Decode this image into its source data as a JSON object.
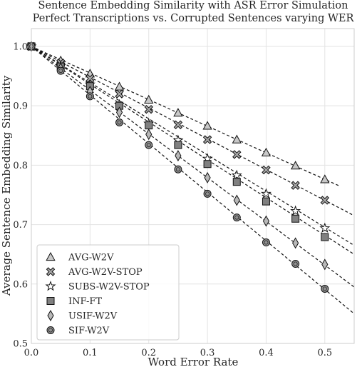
{
  "chart_data": {
    "type": "line",
    "title_lines": [
      "Sentence Embedding Similarity with ASR Error Simulation",
      "Perfect Transcriptions vs. Corrupted Sentences varying WER"
    ],
    "xlabel": "Word Error Rate",
    "ylabel": "Average Sentence Embedding Similarity",
    "xlim": [
      0.0,
      0.55
    ],
    "ylim": [
      0.5,
      1.03
    ],
    "x_ticks": [
      "0.0",
      "0.1",
      "0.2",
      "0.3",
      "0.4",
      "0.5"
    ],
    "y_ticks": [
      "0.5",
      "0.6",
      "0.7",
      "0.8",
      "0.9",
      "1.0"
    ],
    "grid": true,
    "legend_position": "lower-left",
    "x": [
      0.0,
      0.05,
      0.1,
      0.15,
      0.2,
      0.25,
      0.3,
      0.35,
      0.4,
      0.45,
      0.5
    ],
    "series": [
      {
        "name": "AVG-W2V",
        "marker": "triangle",
        "fill": "#c8c8c8",
        "values": [
          1.0,
          0.976,
          0.954,
          0.932,
          0.91,
          0.888,
          0.866,
          0.843,
          0.821,
          0.799,
          0.776
        ],
        "fit_end": [
          0.525,
          0.765
        ]
      },
      {
        "name": "AVG-W2V-STOP",
        "marker": "x",
        "fill": "#a8a8a8",
        "values": [
          1.0,
          0.972,
          0.946,
          0.92,
          0.894,
          0.868,
          0.843,
          0.818,
          0.792,
          0.766,
          0.741
        ],
        "fit_end": [
          0.55,
          0.715
        ]
      },
      {
        "name": "SUBS-W2V-STOP",
        "marker": "star",
        "fill": "#ffffff",
        "values": [
          1.0,
          0.967,
          0.936,
          0.902,
          0.87,
          0.842,
          0.811,
          0.783,
          0.752,
          0.723,
          0.694
        ],
        "fit_end": [
          0.55,
          0.665
        ]
      },
      {
        "name": "INF-FT",
        "marker": "square",
        "fill": "#808080",
        "values": [
          1.0,
          0.966,
          0.933,
          0.9,
          0.867,
          0.834,
          0.802,
          0.772,
          0.739,
          0.71,
          0.679
        ],
        "fit_end": [
          0.55,
          0.65
        ]
      },
      {
        "name": "USIF-W2V",
        "marker": "diamond",
        "fill": "#b8b8b8",
        "values": [
          1.0,
          0.963,
          0.924,
          0.889,
          0.852,
          0.816,
          0.779,
          0.741,
          0.706,
          0.669,
          0.633
        ],
        "fit_end": [
          0.55,
          0.595
        ]
      },
      {
        "name": "SIF-W2V",
        "marker": "circle",
        "fill": "#909090",
        "values": [
          1.0,
          0.959,
          0.916,
          0.872,
          0.834,
          0.793,
          0.752,
          0.712,
          0.67,
          0.634,
          0.592
        ],
        "fit_end": [
          0.55,
          0.55
        ]
      }
    ]
  }
}
